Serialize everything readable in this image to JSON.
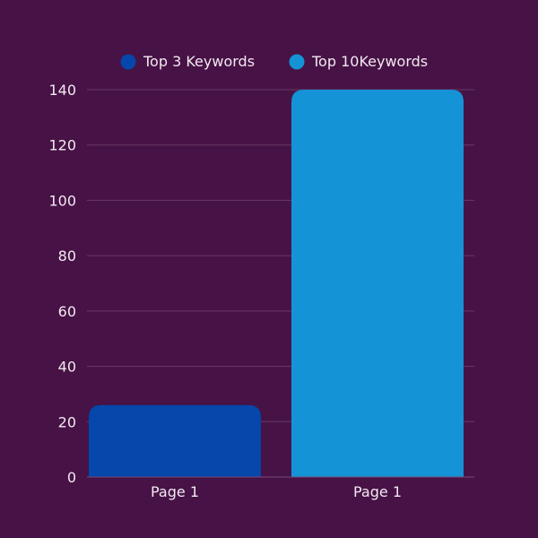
{
  "chart_data": {
    "type": "bar",
    "title": "",
    "xlabel": "",
    "ylabel": "",
    "categories": [
      "Page 1",
      "Page 1"
    ],
    "series": [
      {
        "name": "Top 3 Keywords",
        "color": "#0547ab",
        "values": [
          26,
          null
        ]
      },
      {
        "name": "Top 10Keywords",
        "color": "#1493d6",
        "values": [
          null,
          140
        ]
      }
    ],
    "ylim": [
      0,
      140
    ],
    "yticks": [
      0,
      20,
      40,
      60,
      80,
      100,
      120,
      140
    ],
    "grid": true,
    "legend_position": "top-center"
  },
  "colors": {
    "background": "#471245",
    "text": "#f2e9f2",
    "grid": "#6a3a66"
  }
}
